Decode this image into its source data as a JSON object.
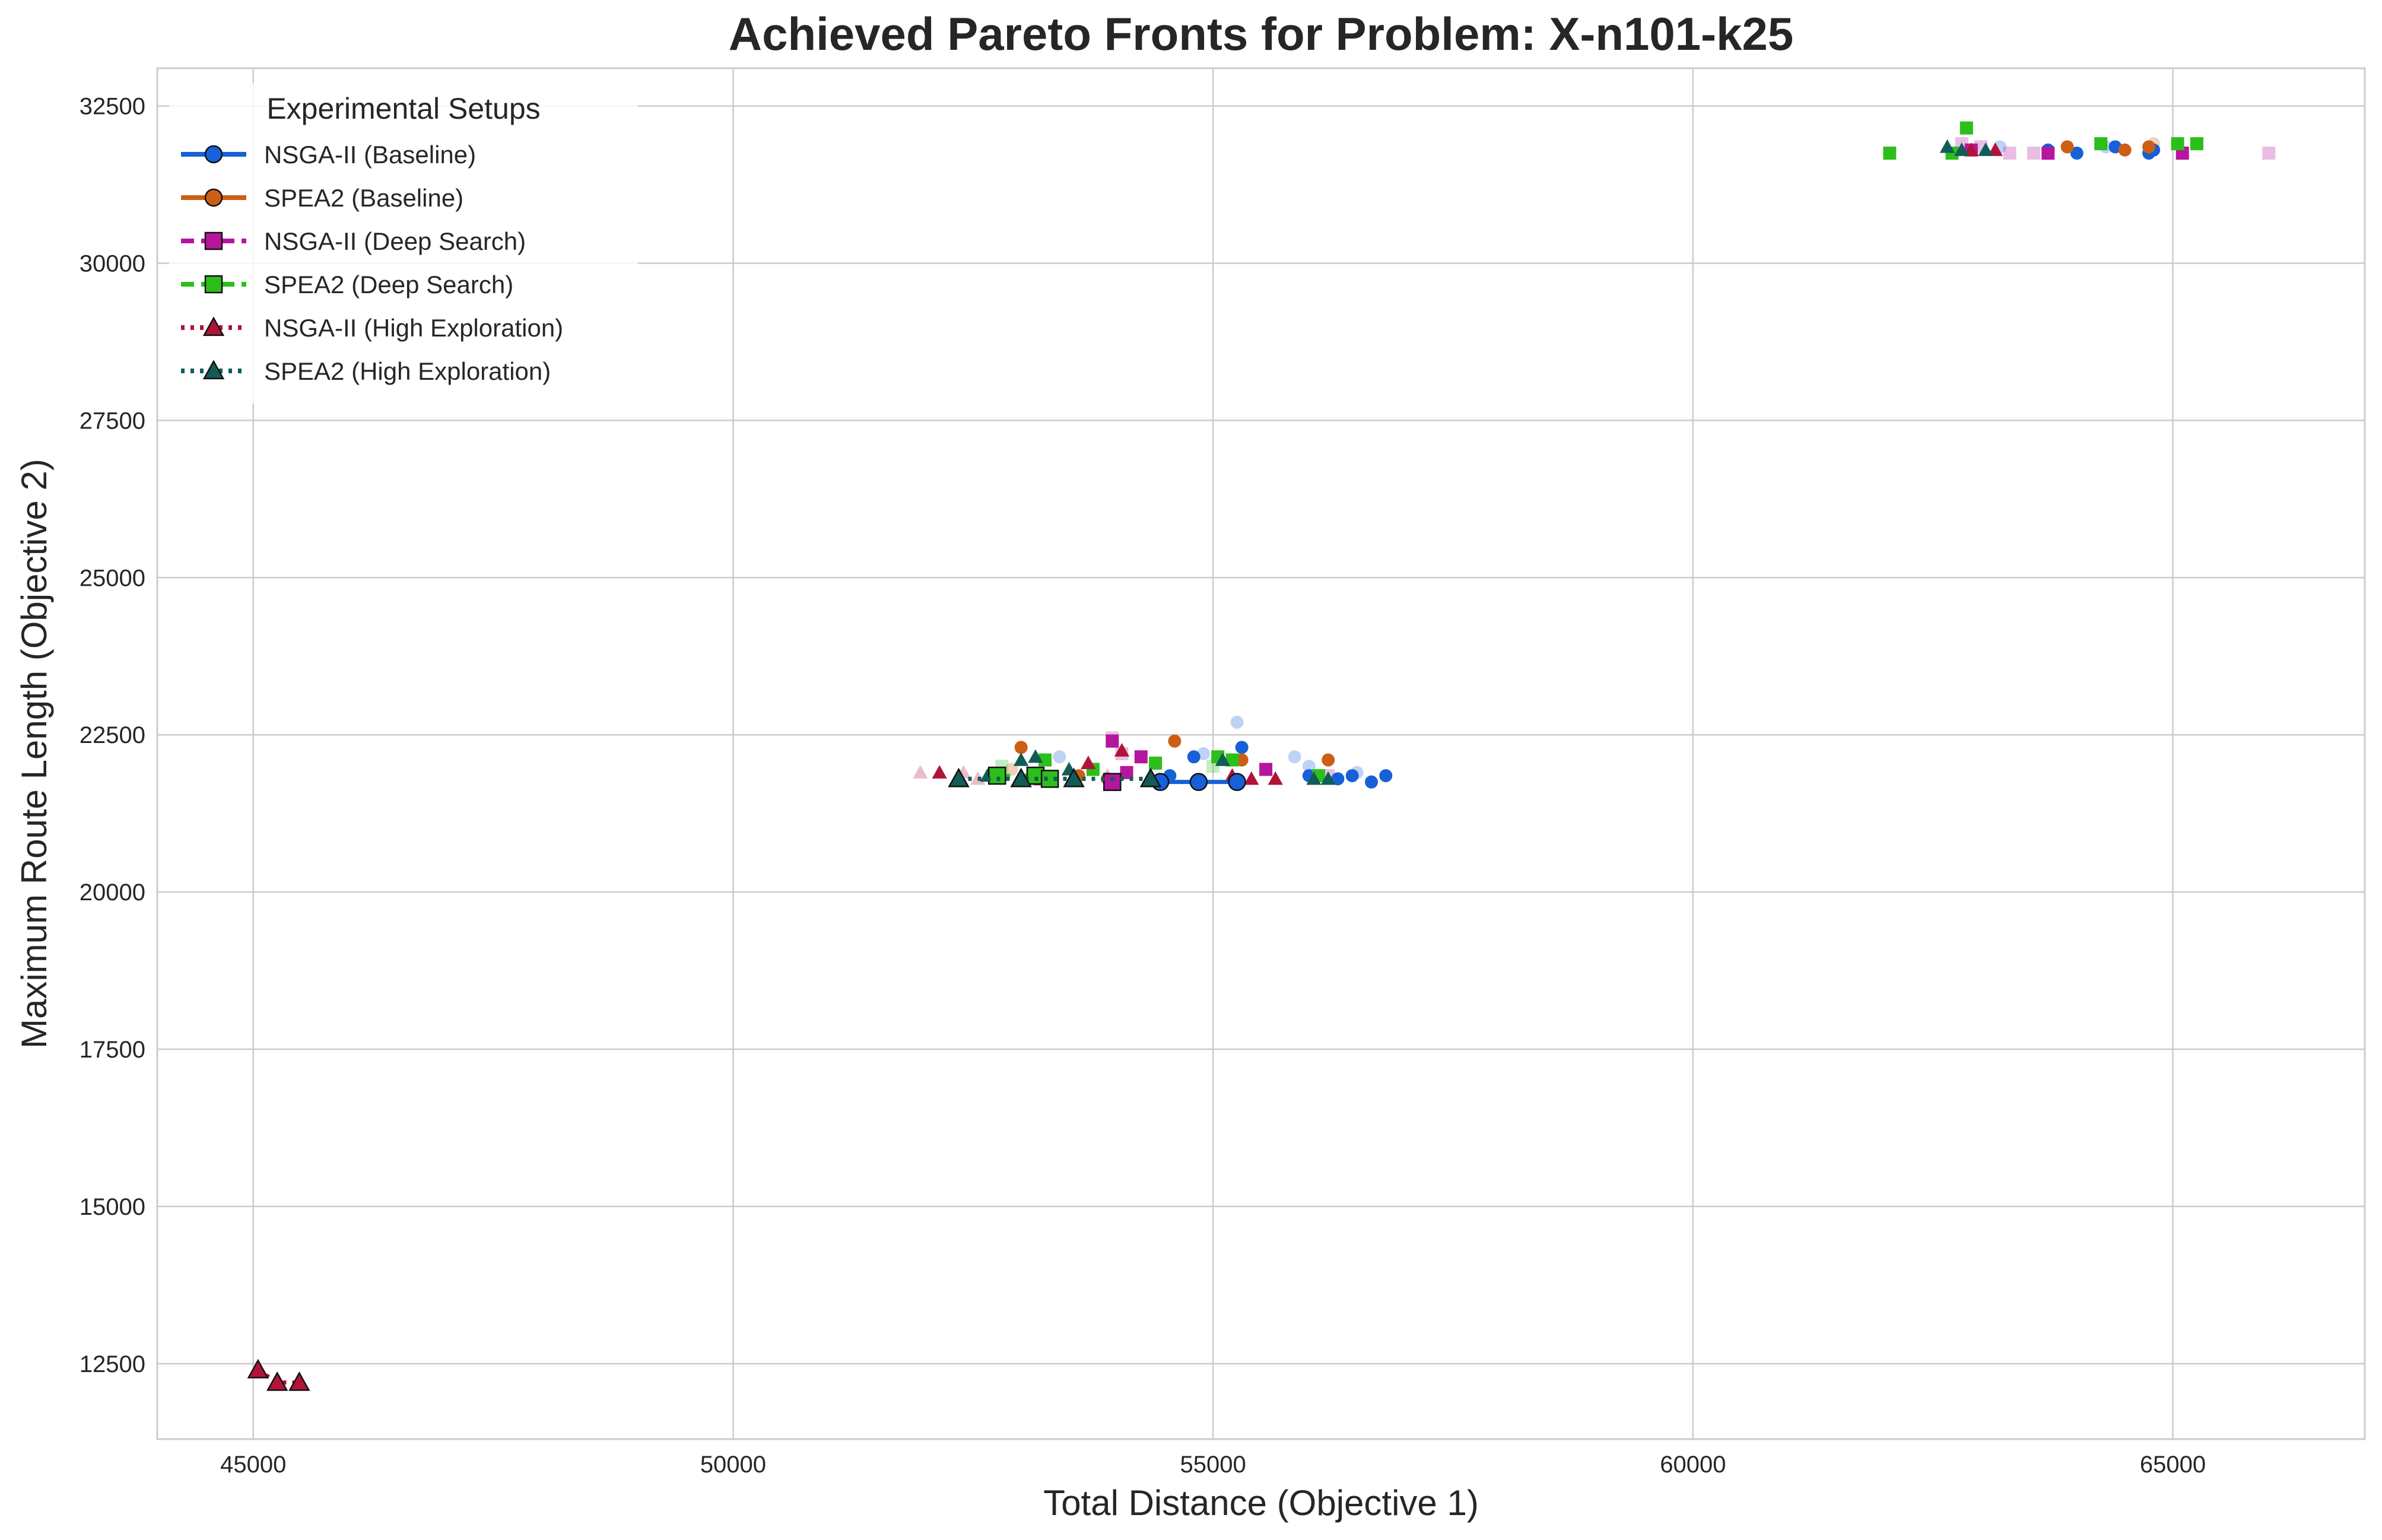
{
  "chart_data": {
    "type": "scatter",
    "title": "Achieved Pareto Fronts for Problem: X-n101-k25",
    "xlabel": "Total Distance (Objective 1)",
    "ylabel": "Maximum Route Length (Objective 2)",
    "xlim": [
      44000,
      67000
    ],
    "ylim": [
      11300,
      33100
    ],
    "xticks": [
      45000,
      50000,
      55000,
      60000,
      65000
    ],
    "yticks": [
      12500,
      15000,
      17500,
      20000,
      22500,
      25000,
      27500,
      30000,
      32500
    ],
    "grid": true,
    "legend": {
      "title": "Experimental Setups",
      "placement": "top-left"
    },
    "series": [
      {
        "name": "NSGA-II (Baseline)",
        "color": "#1660d8",
        "marker": "circle",
        "line": "solid",
        "front": [
          [
            54450,
            21750
          ],
          [
            54850,
            21750
          ],
          [
            55250,
            21750
          ]
        ],
        "points": [
          [
            54550,
            21850
          ],
          [
            54800,
            22150
          ],
          [
            55300,
            22300
          ],
          [
            56000,
            21850
          ],
          [
            56300,
            21800
          ],
          [
            56450,
            21850
          ],
          [
            56650,
            21750
          ],
          [
            56800,
            21850
          ],
          [
            63700,
            31800
          ],
          [
            64000,
            31750
          ],
          [
            64400,
            31850
          ],
          [
            64750,
            31750
          ],
          [
            64800,
            31800
          ]
        ],
        "faint": [
          [
            55250,
            22700
          ],
          [
            55850,
            22150
          ],
          [
            56000,
            22000
          ],
          [
            56500,
            21900
          ],
          [
            53400,
            22150
          ],
          [
            54900,
            22200
          ],
          [
            63200,
            31850
          ],
          [
            64300,
            31850
          ]
        ]
      },
      {
        "name": "SPEA2 (Baseline)",
        "color": "#cc5e15",
        "marker": "circle",
        "line": "solid",
        "front": [],
        "points": [
          [
            53000,
            22300
          ],
          [
            54600,
            22400
          ],
          [
            56200,
            22100
          ],
          [
            55300,
            22100
          ],
          [
            53600,
            21850
          ],
          [
            53900,
            21800
          ],
          [
            63900,
            31850
          ],
          [
            64500,
            31800
          ],
          [
            64750,
            31850
          ]
        ],
        "faint": [
          [
            52900,
            21950
          ],
          [
            56300,
            21800
          ],
          [
            64800,
            31900
          ]
        ]
      },
      {
        "name": "NSGA-II (Deep Search)",
        "color": "#b5169d",
        "marker": "square",
        "line": "dashed",
        "front": [
          [
            53950,
            21750
          ]
        ],
        "points": [
          [
            53950,
            22400
          ],
          [
            54250,
            22150
          ],
          [
            55550,
            21950
          ],
          [
            54100,
            21900
          ],
          [
            53200,
            21800
          ],
          [
            62900,
            31800
          ],
          [
            63700,
            31750
          ],
          [
            65100,
            31750
          ]
        ],
        "faint": [
          [
            53950,
            22450
          ],
          [
            54050,
            22200
          ],
          [
            62800,
            31900
          ],
          [
            63000,
            31850
          ],
          [
            63300,
            31750
          ],
          [
            63550,
            31750
          ],
          [
            66000,
            31750
          ],
          [
            56200,
            21850
          ]
        ]
      },
      {
        "name": "SPEA2 (Deep Search)",
        "color": "#2cbf1b",
        "marker": "square",
        "line": "dashed",
        "front": [
          [
            52750,
            21850
          ],
          [
            53150,
            21850
          ],
          [
            53300,
            21800
          ]
        ],
        "points": [
          [
            53250,
            22100
          ],
          [
            54400,
            22050
          ],
          [
            55050,
            22150
          ],
          [
            55200,
            22100
          ],
          [
            53750,
            21950
          ],
          [
            56100,
            21850
          ],
          [
            62050,
            31750
          ],
          [
            62850,
            32150
          ],
          [
            62700,
            31750
          ],
          [
            64250,
            31900
          ],
          [
            65050,
            31900
          ],
          [
            65250,
            31900
          ]
        ],
        "faint": [
          [
            55000,
            22000
          ],
          [
            52800,
            22000
          ]
        ]
      },
      {
        "name": "NSGA-II (High Exploration)",
        "color": "#b21338",
        "marker": "triangle",
        "line": "dotted",
        "front": [
          [
            45050,
            12400
          ],
          [
            45250,
            12200
          ],
          [
            45480,
            12200
          ]
        ],
        "points": [
          [
            52150,
            21900
          ],
          [
            53700,
            22050
          ],
          [
            54050,
            22250
          ],
          [
            55200,
            21850
          ],
          [
            55400,
            21800
          ],
          [
            55650,
            21800
          ],
          [
            53100,
            21800
          ],
          [
            62900,
            31800
          ],
          [
            63150,
            31800
          ]
        ],
        "faint": [
          [
            51950,
            21900
          ],
          [
            52400,
            21900
          ],
          [
            52550,
            21800
          ],
          [
            53900,
            21850
          ]
        ]
      },
      {
        "name": "SPEA2 (High Exploration)",
        "color": "#115c57",
        "marker": "triangle",
        "line": "dotted",
        "front": [
          [
            52350,
            21800
          ],
          [
            53000,
            21800
          ],
          [
            53550,
            21800
          ],
          [
            54350,
            21800
          ]
        ],
        "points": [
          [
            52650,
            21850
          ],
          [
            53000,
            22100
          ],
          [
            53150,
            22150
          ],
          [
            53500,
            21950
          ],
          [
            55100,
            22100
          ],
          [
            56050,
            21800
          ],
          [
            56200,
            21800
          ],
          [
            62650,
            31850
          ],
          [
            62800,
            31800
          ],
          [
            63050,
            31800
          ]
        ],
        "faint": []
      }
    ]
  }
}
